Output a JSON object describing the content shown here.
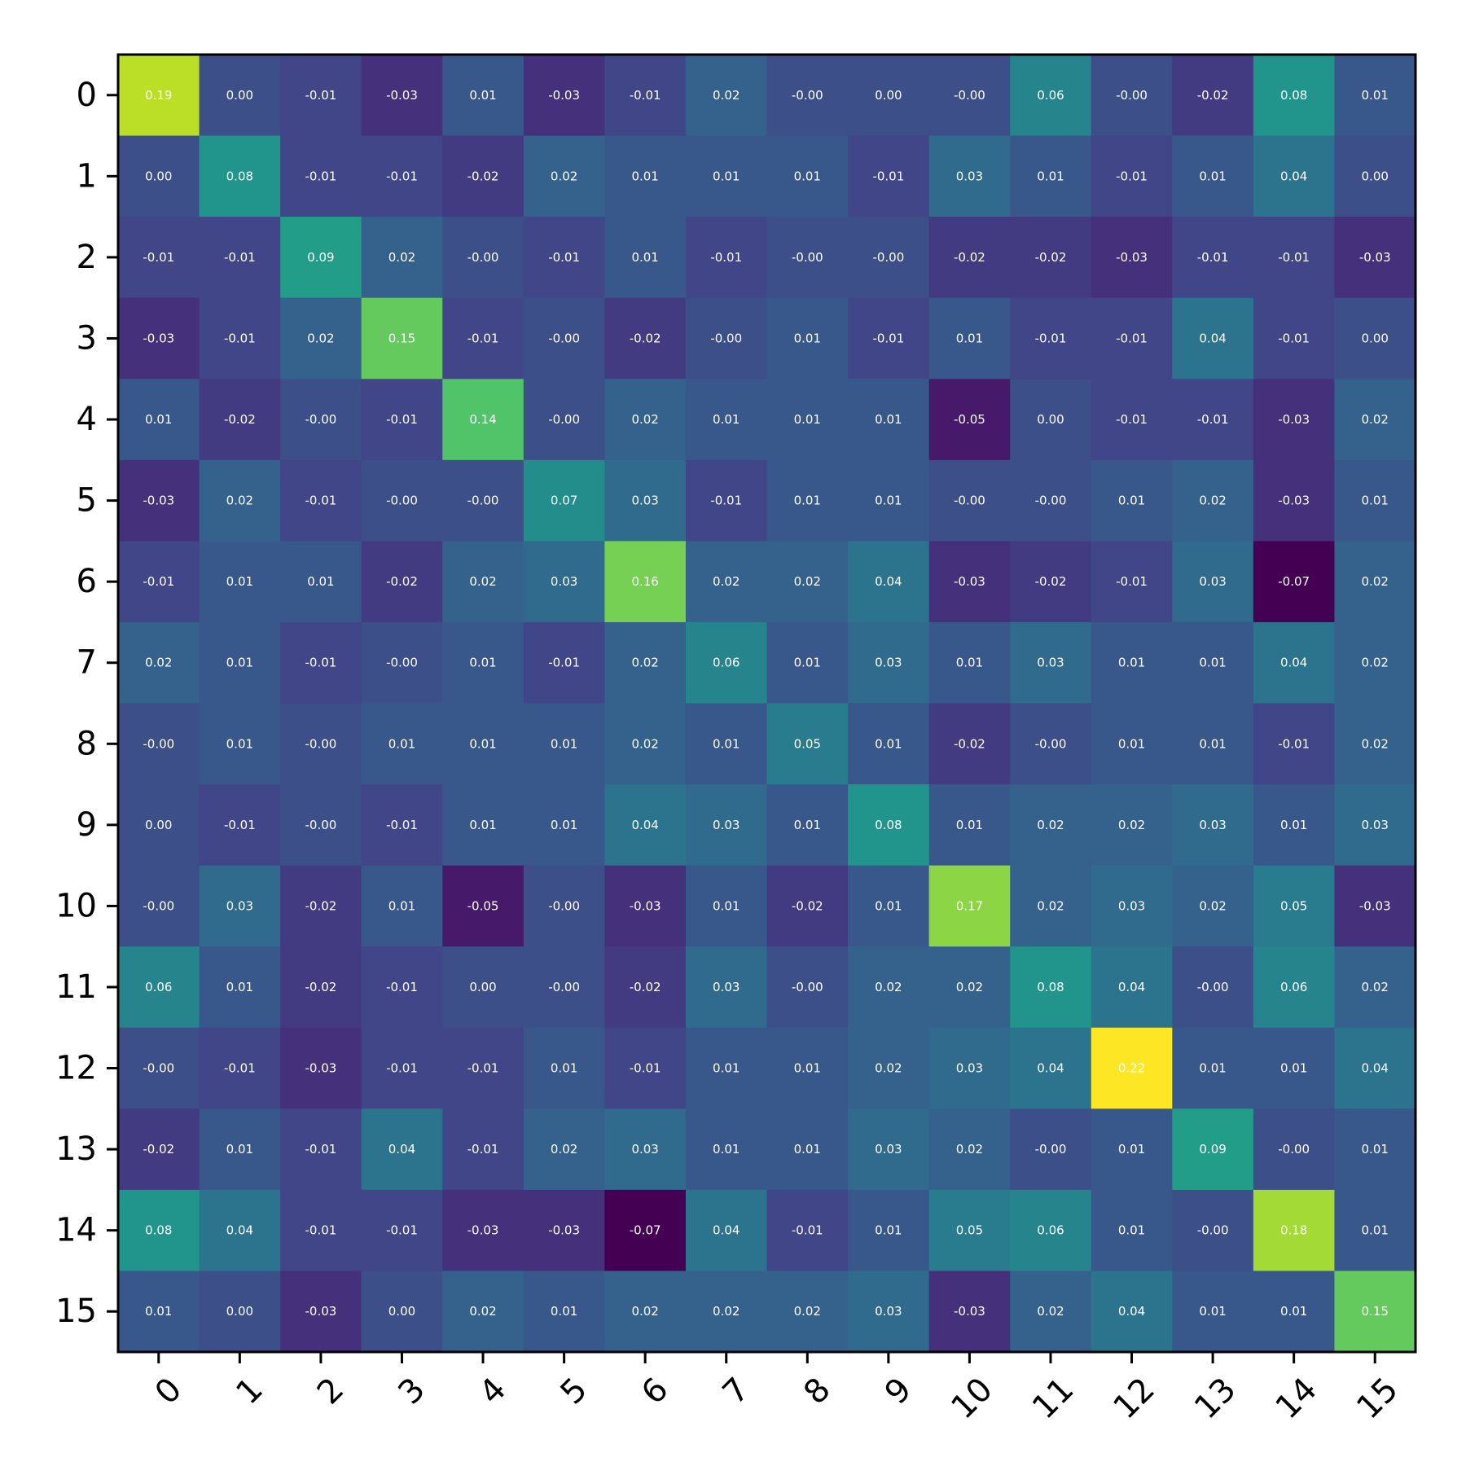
{
  "chart_data": {
    "type": "heatmap",
    "title": "",
    "xlabel": "",
    "ylabel": "",
    "colormap": "viridis",
    "value_range": [
      -0.07,
      0.22
    ],
    "grid": false,
    "legend": "none",
    "x_tick_labels": [
      "0",
      "1",
      "2",
      "3",
      "4",
      "5",
      "6",
      "7",
      "8",
      "9",
      "10",
      "11",
      "12",
      "13",
      "14",
      "15"
    ],
    "y_tick_labels": [
      "0",
      "1",
      "2",
      "3",
      "4",
      "5",
      "6",
      "7",
      "8",
      "9",
      "10",
      "11",
      "12",
      "13",
      "14",
      "15"
    ],
    "annotation_color": "#ffffff",
    "values": [
      [
        0.19,
        0.0,
        -0.01,
        -0.03,
        0.01,
        -0.03,
        -0.01,
        0.02,
        -0.0,
        0.0,
        -0.0,
        0.06,
        -0.0,
        -0.02,
        0.08,
        0.01
      ],
      [
        0.0,
        0.08,
        -0.01,
        -0.01,
        -0.02,
        0.02,
        0.01,
        0.01,
        0.01,
        -0.01,
        0.03,
        0.01,
        -0.01,
        0.01,
        0.04,
        0.0
      ],
      [
        -0.01,
        -0.01,
        0.09,
        0.02,
        -0.0,
        -0.01,
        0.01,
        -0.01,
        -0.0,
        -0.0,
        -0.02,
        -0.02,
        -0.03,
        -0.01,
        -0.01,
        -0.03
      ],
      [
        -0.03,
        -0.01,
        0.02,
        0.15,
        -0.01,
        -0.0,
        -0.02,
        -0.0,
        0.01,
        -0.01,
        0.01,
        -0.01,
        -0.01,
        0.04,
        -0.01,
        0.0
      ],
      [
        0.01,
        -0.02,
        -0.0,
        -0.01,
        0.14,
        -0.0,
        0.02,
        0.01,
        0.01,
        0.01,
        -0.05,
        0.0,
        -0.01,
        -0.01,
        -0.03,
        0.02
      ],
      [
        -0.03,
        0.02,
        -0.01,
        -0.0,
        -0.0,
        0.07,
        0.03,
        -0.01,
        0.01,
        0.01,
        -0.0,
        -0.0,
        0.01,
        0.02,
        -0.03,
        0.01
      ],
      [
        -0.01,
        0.01,
        0.01,
        -0.02,
        0.02,
        0.03,
        0.16,
        0.02,
        0.02,
        0.04,
        -0.03,
        -0.02,
        -0.01,
        0.03,
        -0.07,
        0.02
      ],
      [
        0.02,
        0.01,
        -0.01,
        -0.0,
        0.01,
        -0.01,
        0.02,
        0.06,
        0.01,
        0.03,
        0.01,
        0.03,
        0.01,
        0.01,
        0.04,
        0.02
      ],
      [
        -0.0,
        0.01,
        -0.0,
        0.01,
        0.01,
        0.01,
        0.02,
        0.01,
        0.05,
        0.01,
        -0.02,
        -0.0,
        0.01,
        0.01,
        -0.01,
        0.02
      ],
      [
        0.0,
        -0.01,
        -0.0,
        -0.01,
        0.01,
        0.01,
        0.04,
        0.03,
        0.01,
        0.08,
        0.01,
        0.02,
        0.02,
        0.03,
        0.01,
        0.03
      ],
      [
        -0.0,
        0.03,
        -0.02,
        0.01,
        -0.05,
        -0.0,
        -0.03,
        0.01,
        -0.02,
        0.01,
        0.17,
        0.02,
        0.03,
        0.02,
        0.05,
        -0.03
      ],
      [
        0.06,
        0.01,
        -0.02,
        -0.01,
        0.0,
        -0.0,
        -0.02,
        0.03,
        -0.0,
        0.02,
        0.02,
        0.08,
        0.04,
        -0.0,
        0.06,
        0.02
      ],
      [
        -0.0,
        -0.01,
        -0.03,
        -0.01,
        -0.01,
        0.01,
        -0.01,
        0.01,
        0.01,
        0.02,
        0.03,
        0.04,
        0.22,
        0.01,
        0.01,
        0.04
      ],
      [
        -0.02,
        0.01,
        -0.01,
        0.04,
        -0.01,
        0.02,
        0.03,
        0.01,
        0.01,
        0.03,
        0.02,
        -0.0,
        0.01,
        0.09,
        -0.0,
        0.01
      ],
      [
        0.08,
        0.04,
        -0.01,
        -0.01,
        -0.03,
        -0.03,
        -0.07,
        0.04,
        -0.01,
        0.01,
        0.05,
        0.06,
        0.01,
        -0.0,
        0.18,
        0.01
      ],
      [
        0.01,
        0.0,
        -0.03,
        0.0,
        0.02,
        0.01,
        0.02,
        0.02,
        0.02,
        0.03,
        -0.03,
        0.02,
        0.04,
        0.01,
        0.01,
        0.15
      ]
    ],
    "cell_labels": [
      [
        "0.19",
        "0.00",
        "-0.01",
        "-0.03",
        "0.01",
        "-0.03",
        "-0.01",
        "0.02",
        "-0.00",
        "0.00",
        "-0.00",
        "0.06",
        "-0.00",
        "-0.02",
        "0.08",
        "0.01"
      ],
      [
        "0.00",
        "0.08",
        "-0.01",
        "-0.01",
        "-0.02",
        "0.02",
        "0.01",
        "0.01",
        "0.01",
        "-0.01",
        "0.03",
        "0.01",
        "-0.01",
        "0.01",
        "0.04",
        "0.00"
      ],
      [
        "-0.01",
        "-0.01",
        "0.09",
        "0.02",
        "-0.00",
        "-0.01",
        "0.01",
        "-0.01",
        "-0.00",
        "-0.00",
        "-0.02",
        "-0.02",
        "-0.03",
        "-0.01",
        "-0.01",
        "-0.03"
      ],
      [
        "-0.03",
        "-0.01",
        "0.02",
        "0.15",
        "-0.01",
        "-0.00",
        "-0.02",
        "-0.00",
        "0.01",
        "-0.01",
        "0.01",
        "-0.01",
        "-0.01",
        "0.04",
        "-0.01",
        "0.00"
      ],
      [
        "0.01",
        "-0.02",
        "-0.00",
        "-0.01",
        "0.14",
        "-0.00",
        "0.02",
        "0.01",
        "0.01",
        "0.01",
        "-0.05",
        "0.00",
        "-0.01",
        "-0.01",
        "-0.03",
        "0.02"
      ],
      [
        "-0.03",
        "0.02",
        "-0.01",
        "-0.00",
        "-0.00",
        "0.07",
        "0.03",
        "-0.01",
        "0.01",
        "0.01",
        "-0.00",
        "-0.00",
        "0.01",
        "0.02",
        "-0.03",
        "0.01"
      ],
      [
        "-0.01",
        "0.01",
        "0.01",
        "-0.02",
        "0.02",
        "0.03",
        "0.16",
        "0.02",
        "0.02",
        "0.04",
        "-0.03",
        "-0.02",
        "-0.01",
        "0.03",
        "-0.07",
        "0.02"
      ],
      [
        "0.02",
        "0.01",
        "-0.01",
        "-0.00",
        "0.01",
        "-0.01",
        "0.02",
        "0.06",
        "0.01",
        "0.03",
        "0.01",
        "0.03",
        "0.01",
        "0.01",
        "0.04",
        "0.02"
      ],
      [
        "-0.00",
        "0.01",
        "-0.00",
        "0.01",
        "0.01",
        "0.01",
        "0.02",
        "0.01",
        "0.05",
        "0.01",
        "-0.02",
        "-0.00",
        "0.01",
        "0.01",
        "-0.01",
        "0.02"
      ],
      [
        "0.00",
        "-0.01",
        "-0.00",
        "-0.01",
        "0.01",
        "0.01",
        "0.04",
        "0.03",
        "0.01",
        "0.08",
        "0.01",
        "0.02",
        "0.02",
        "0.03",
        "0.01",
        "0.03"
      ],
      [
        "-0.00",
        "0.03",
        "-0.02",
        "0.01",
        "-0.05",
        "-0.00",
        "-0.03",
        "0.01",
        "-0.02",
        "0.01",
        "0.17",
        "0.02",
        "0.03",
        "0.02",
        "0.05",
        "-0.03"
      ],
      [
        "0.06",
        "0.01",
        "-0.02",
        "-0.01",
        "0.00",
        "-0.00",
        "-0.02",
        "0.03",
        "-0.00",
        "0.02",
        "0.02",
        "0.08",
        "0.04",
        "-0.00",
        "0.06",
        "0.02"
      ],
      [
        "-0.00",
        "-0.01",
        "-0.03",
        "-0.01",
        "-0.01",
        "0.01",
        "-0.01",
        "0.01",
        "0.01",
        "0.02",
        "0.03",
        "0.04",
        "0.22",
        "0.01",
        "0.01",
        "0.04"
      ],
      [
        "-0.02",
        "0.01",
        "-0.01",
        "0.04",
        "-0.01",
        "0.02",
        "0.03",
        "0.01",
        "0.01",
        "0.03",
        "0.02",
        "-0.00",
        "0.01",
        "0.09",
        "-0.00",
        "0.01"
      ],
      [
        "0.08",
        "0.04",
        "-0.01",
        "-0.01",
        "-0.03",
        "-0.03",
        "-0.07",
        "0.04",
        "-0.01",
        "0.01",
        "0.05",
        "0.06",
        "0.01",
        "-0.00",
        "0.18",
        "0.01"
      ],
      [
        "0.01",
        "0.00",
        "-0.03",
        "0.00",
        "0.02",
        "0.01",
        "0.02",
        "0.02",
        "0.02",
        "0.03",
        "-0.03",
        "0.02",
        "0.04",
        "0.01",
        "0.01",
        "0.15"
      ]
    ]
  }
}
